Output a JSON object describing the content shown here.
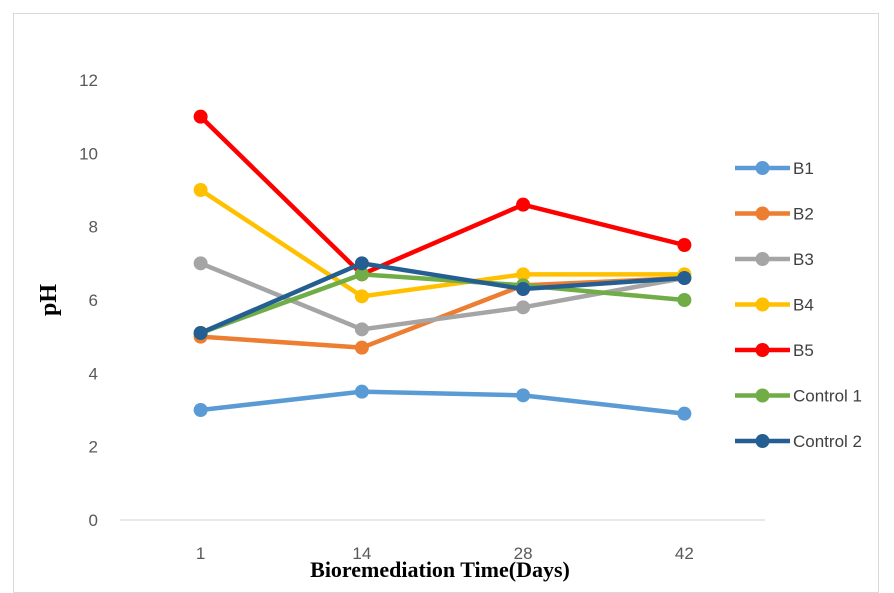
{
  "chart_data": {
    "type": "line",
    "title": "",
    "xlabel": "Bioremediation Time(Days)",
    "ylabel": "pH",
    "categories": [
      "1",
      "14",
      "28",
      "42"
    ],
    "ylim": [
      0,
      12
    ],
    "yticks": [
      0,
      2,
      4,
      6,
      8,
      10,
      12
    ],
    "grid": false,
    "legend_position": "right",
    "series": [
      {
        "name": "B1",
        "color": "#5b9bd5",
        "values": [
          3.0,
          3.5,
          3.4,
          2.9
        ]
      },
      {
        "name": "B2",
        "color": "#ed7d31",
        "values": [
          5.0,
          4.7,
          6.4,
          6.6
        ]
      },
      {
        "name": "B3",
        "color": "#a5a5a5",
        "values": [
          7.0,
          5.2,
          5.8,
          6.6
        ]
      },
      {
        "name": "B4",
        "color": "#ffc000",
        "values": [
          9.0,
          6.1,
          6.7,
          6.7
        ]
      },
      {
        "name": "B5",
        "color": "#ff0000",
        "values": [
          11.0,
          6.7,
          8.6,
          7.5
        ]
      },
      {
        "name": "Control 1",
        "color": "#70ad47",
        "values": [
          5.1,
          6.7,
          6.4,
          6.0
        ]
      },
      {
        "name": "Control 2",
        "color": "#255e91",
        "values": [
          5.1,
          7.0,
          6.3,
          6.6
        ]
      }
    ]
  }
}
